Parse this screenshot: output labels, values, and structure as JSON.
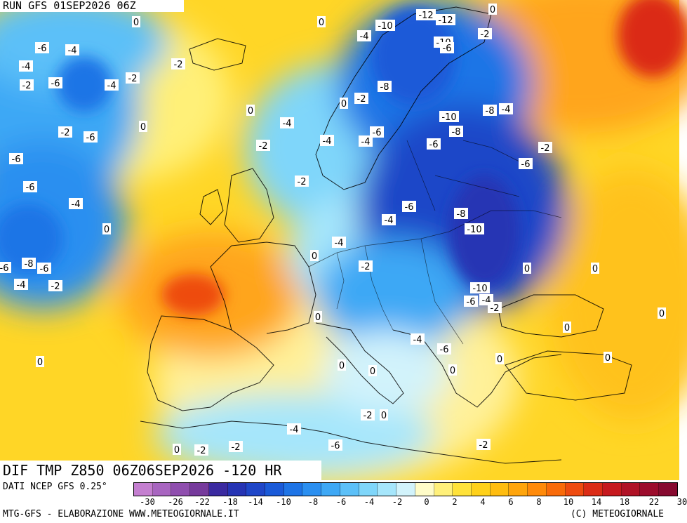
{
  "run_label": "RUN GFS 01SEP2026 06Z",
  "title": "DIF TMP Z850 06Z06SEP2026 -120 HR",
  "source": "DATI NCEP GFS 0.25°",
  "credit": "MTG-GFS - ELABORAZIONE WWW.METEOGIORNALE.IT",
  "copyright": "(C) METEOGIORNALE",
  "colorbar": {
    "colors": [
      "#c47fd0",
      "#a865c0",
      "#8f4eae",
      "#763a9c",
      "#3b2aa0",
      "#2634b4",
      "#1f46c8",
      "#1a5ad8",
      "#1e74e6",
      "#2b8ff0",
      "#3ea8f5",
      "#5cc0f8",
      "#7fd6fa",
      "#a6e6fb",
      "#d2f3fb",
      "#fffcc8",
      "#fff07a",
      "#ffe23a",
      "#ffd11a",
      "#ffbd10",
      "#ffa50c",
      "#ff8a0a",
      "#f96b0a",
      "#ee4b10",
      "#db2c16",
      "#c6191e",
      "#b01226",
      "#9c0c2c",
      "#870a30"
    ],
    "ticks": [
      "-30",
      "-26",
      "-22",
      "-18",
      "-14",
      "-10",
      "-8",
      "-6",
      "-4",
      "-2",
      "0",
      "2",
      "4",
      "6",
      "8",
      "10",
      "14",
      "18",
      "22",
      "30"
    ]
  },
  "contour_labels": [
    {
      "text": "0"
    },
    {
      "text": "0"
    },
    {
      "text": "-12"
    },
    {
      "text": "-12"
    },
    {
      "text": "0"
    },
    {
      "text": "-10"
    },
    {
      "text": "-4"
    },
    {
      "text": "-2"
    },
    {
      "text": "-10"
    },
    {
      "text": "-6"
    },
    {
      "text": "-6"
    },
    {
      "text": "-4"
    },
    {
      "text": "-4"
    },
    {
      "text": "-2"
    },
    {
      "text": "-2"
    },
    {
      "text": "-6"
    },
    {
      "text": "-4"
    },
    {
      "text": "-2"
    },
    {
      "text": "-8"
    },
    {
      "text": "-2"
    },
    {
      "text": "0"
    },
    {
      "text": "-8"
    },
    {
      "text": "-4"
    },
    {
      "text": "-10"
    },
    {
      "text": "0"
    },
    {
      "text": "-4"
    },
    {
      "text": "-8"
    },
    {
      "text": "-6"
    },
    {
      "text": "-2"
    },
    {
      "text": "0"
    },
    {
      "text": "-2"
    },
    {
      "text": "-4"
    },
    {
      "text": "-4"
    },
    {
      "text": "-6"
    },
    {
      "text": "-2"
    },
    {
      "text": "-6"
    },
    {
      "text": "-6"
    },
    {
      "text": "-6"
    },
    {
      "text": "-2"
    },
    {
      "text": "-4"
    },
    {
      "text": "-6"
    },
    {
      "text": "-6"
    },
    {
      "text": "-8"
    },
    {
      "text": "-4"
    },
    {
      "text": "0"
    },
    {
      "text": "-10"
    },
    {
      "text": "-4"
    },
    {
      "text": "0"
    },
    {
      "text": "-2"
    },
    {
      "text": "0"
    },
    {
      "text": "0"
    },
    {
      "text": "-6"
    },
    {
      "text": "-8"
    },
    {
      "text": "-6"
    },
    {
      "text": "-4"
    },
    {
      "text": "-2"
    },
    {
      "text": "-10"
    },
    {
      "text": "-6"
    },
    {
      "text": "-4"
    },
    {
      "text": "-2"
    },
    {
      "text": "0"
    },
    {
      "text": "0"
    },
    {
      "text": "-4"
    },
    {
      "text": "-6"
    },
    {
      "text": "0"
    },
    {
      "text": "0"
    },
    {
      "text": "0"
    },
    {
      "text": "0"
    },
    {
      "text": "0"
    },
    {
      "text": "0"
    },
    {
      "text": "0"
    },
    {
      "text": "-2"
    },
    {
      "text": "0"
    },
    {
      "text": "-4"
    },
    {
      "text": "-6"
    },
    {
      "text": "-2"
    },
    {
      "text": "0"
    },
    {
      "text": "-2"
    },
    {
      "text": "-2"
    }
  ]
}
